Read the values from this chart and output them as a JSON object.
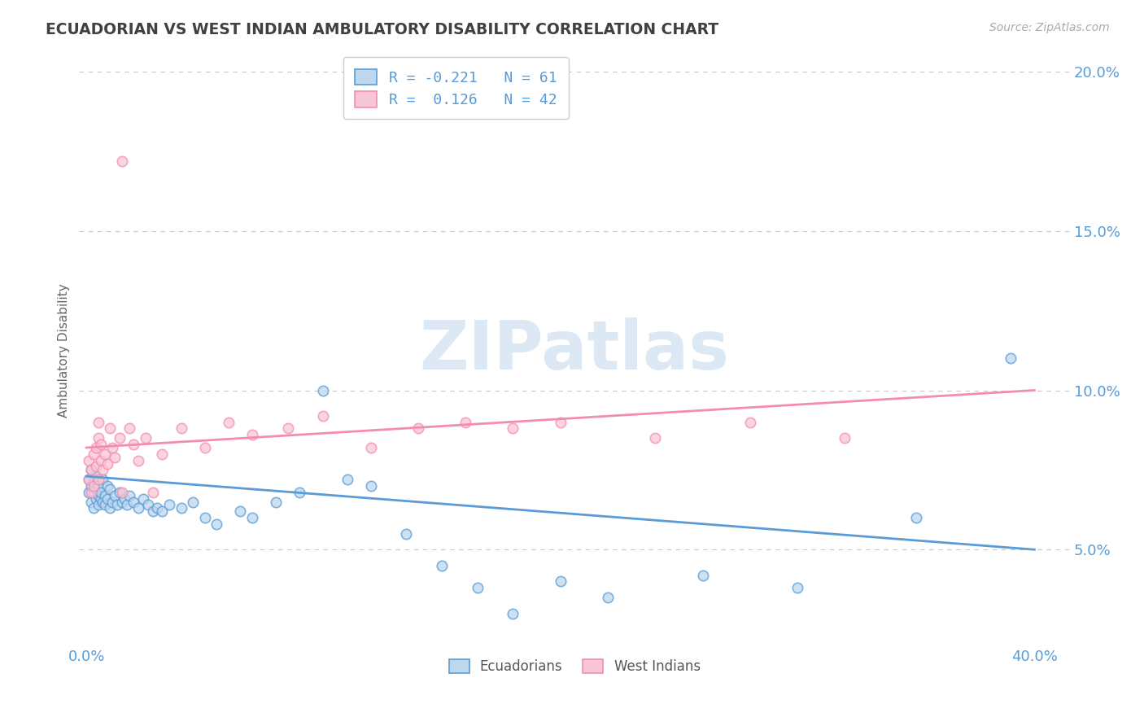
{
  "title": "ECUADORIAN VS WEST INDIAN AMBULATORY DISABILITY CORRELATION CHART",
  "source": "Source: ZipAtlas.com",
  "ylabel": "Ambulatory Disability",
  "legend_labels": [
    "Ecuadorians",
    "West Indians"
  ],
  "r_values": [
    -0.221,
    0.126
  ],
  "n_values": [
    61,
    42
  ],
  "blue_color": "#5b9bd5",
  "pink_color": "#f48cb1",
  "blue_fill": "#bdd7ee",
  "pink_fill": "#f9c6d5",
  "axis_label_color": "#5b9bd5",
  "title_color": "#404040",
  "grid_color": "#c8c8c8",
  "background_color": "#ffffff",
  "watermark_color": "#dce9f5",
  "ylim_min": 0.02,
  "ylim_max": 0.205,
  "xlim_min": -0.003,
  "xlim_max": 0.415,
  "yticks": [
    0.05,
    0.1,
    0.15,
    0.2
  ],
  "ytick_labels": [
    "5.0%",
    "10.0%",
    "15.0%",
    "20.0%"
  ],
  "ecu_trend_x": [
    0.0,
    0.4
  ],
  "ecu_trend_y": [
    0.073,
    0.05
  ],
  "wi_trend_x": [
    0.0,
    0.4
  ],
  "wi_trend_y": [
    0.082,
    0.1
  ],
  "ecu_x": [
    0.001,
    0.001,
    0.002,
    0.002,
    0.002,
    0.003,
    0.003,
    0.003,
    0.004,
    0.004,
    0.004,
    0.005,
    0.005,
    0.005,
    0.006,
    0.006,
    0.007,
    0.007,
    0.008,
    0.008,
    0.009,
    0.009,
    0.01,
    0.01,
    0.011,
    0.012,
    0.013,
    0.014,
    0.015,
    0.016,
    0.017,
    0.018,
    0.02,
    0.022,
    0.024,
    0.026,
    0.028,
    0.03,
    0.032,
    0.035,
    0.04,
    0.045,
    0.05,
    0.055,
    0.065,
    0.07,
    0.08,
    0.09,
    0.1,
    0.11,
    0.12,
    0.135,
    0.15,
    0.165,
    0.18,
    0.2,
    0.22,
    0.26,
    0.3,
    0.35,
    0.39
  ],
  "ecu_y": [
    0.068,
    0.072,
    0.065,
    0.07,
    0.075,
    0.063,
    0.068,
    0.071,
    0.066,
    0.069,
    0.073,
    0.064,
    0.067,
    0.07,
    0.066,
    0.068,
    0.065,
    0.072,
    0.064,
    0.067,
    0.066,
    0.07,
    0.063,
    0.069,
    0.065,
    0.067,
    0.064,
    0.068,
    0.065,
    0.066,
    0.064,
    0.067,
    0.065,
    0.063,
    0.066,
    0.064,
    0.062,
    0.063,
    0.062,
    0.064,
    0.063,
    0.065,
    0.06,
    0.058,
    0.062,
    0.06,
    0.065,
    0.068,
    0.1,
    0.072,
    0.07,
    0.055,
    0.045,
    0.038,
    0.03,
    0.04,
    0.035,
    0.042,
    0.038,
    0.06,
    0.11
  ],
  "wi_x": [
    0.001,
    0.001,
    0.002,
    0.002,
    0.003,
    0.003,
    0.004,
    0.004,
    0.005,
    0.005,
    0.005,
    0.006,
    0.006,
    0.007,
    0.008,
    0.009,
    0.01,
    0.011,
    0.012,
    0.014,
    0.015,
    0.018,
    0.02,
    0.022,
    0.025,
    0.028,
    0.032,
    0.04,
    0.05,
    0.06,
    0.07,
    0.085,
    0.1,
    0.12,
    0.14,
    0.16,
    0.18,
    0.2,
    0.24,
    0.28,
    0.32,
    0.015
  ],
  "wi_y": [
    0.072,
    0.078,
    0.068,
    0.075,
    0.08,
    0.07,
    0.082,
    0.076,
    0.085,
    0.072,
    0.09,
    0.078,
    0.083,
    0.075,
    0.08,
    0.077,
    0.088,
    0.082,
    0.079,
    0.085,
    0.068,
    0.088,
    0.083,
    0.078,
    0.085,
    0.068,
    0.08,
    0.088,
    0.082,
    0.09,
    0.086,
    0.088,
    0.092,
    0.082,
    0.088,
    0.09,
    0.088,
    0.09,
    0.085,
    0.09,
    0.085,
    0.172
  ]
}
